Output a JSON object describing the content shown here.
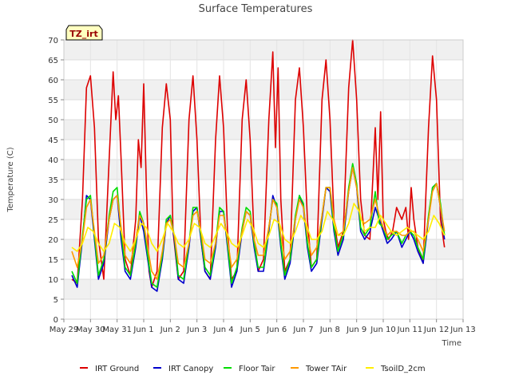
{
  "chart_data": {
    "type": "line",
    "title": "Surface Temperatures",
    "xlabel": "Time",
    "ylabel": "Temperature (C)",
    "badge": "TZ_irt",
    "ylim": [
      0,
      70
    ],
    "yticks": [
      0,
      5,
      10,
      15,
      20,
      25,
      30,
      35,
      40,
      45,
      50,
      55,
      60,
      65,
      70
    ],
    "xlim": [
      0,
      15
    ],
    "xticks": [
      {
        "x": 0,
        "label": "May 29"
      },
      {
        "x": 1,
        "label": "May 30"
      },
      {
        "x": 2,
        "label": "May 31"
      },
      {
        "x": 3,
        "label": "Jun 1"
      },
      {
        "x": 4,
        "label": "Jun 2"
      },
      {
        "x": 5,
        "label": "Jun 3"
      },
      {
        "x": 6,
        "label": "Jun 4"
      },
      {
        "x": 7,
        "label": "Jun 5"
      },
      {
        "x": 8,
        "label": "Jun 6"
      },
      {
        "x": 9,
        "label": "Jun 7"
      },
      {
        "x": 10,
        "label": "Jun 8"
      },
      {
        "x": 11,
        "label": "Jun 9"
      },
      {
        "x": 12,
        "label": "Jun 10"
      },
      {
        "x": 13,
        "label": "Jun 11"
      },
      {
        "x": 14,
        "label": "Jun 12"
      },
      {
        "x": 15,
        "label": "Jun 13"
      }
    ],
    "grid": true,
    "legend_position": "bottom",
    "series": [
      {
        "name": "IRT Ground",
        "color": "#dd0000",
        "x": [
          0.3,
          0.5,
          0.7,
          0.85,
          1.0,
          1.15,
          1.3,
          1.5,
          1.7,
          1.85,
          1.95,
          2.05,
          2.15,
          2.3,
          2.5,
          2.7,
          2.8,
          2.9,
          3.0,
          3.1,
          3.2,
          3.3,
          3.5,
          3.7,
          3.85,
          4.0,
          4.1,
          4.3,
          4.5,
          4.7,
          4.85,
          5.0,
          5.15,
          5.3,
          5.5,
          5.7,
          5.85,
          6.0,
          6.15,
          6.3,
          6.5,
          6.7,
          6.85,
          7.0,
          7.15,
          7.3,
          7.5,
          7.7,
          7.85,
          7.95,
          8.05,
          8.15,
          8.3,
          8.5,
          8.7,
          8.85,
          9.0,
          9.15,
          9.3,
          9.5,
          9.7,
          9.85,
          10.0,
          10.15,
          10.3,
          10.5,
          10.7,
          10.85,
          11.0,
          11.15,
          11.3,
          11.5,
          11.7,
          11.8,
          11.9,
          12.0,
          12.1,
          12.2,
          12.35,
          12.5,
          12.7,
          12.85,
          12.95,
          13.05,
          13.15,
          13.3,
          13.5,
          13.7,
          13.85,
          14.0,
          14.15,
          14.3
        ],
        "y": [
          10,
          9,
          30,
          58,
          61,
          48,
          20,
          10,
          40,
          62,
          50,
          56,
          40,
          15,
          11,
          25,
          45,
          38,
          59,
          33,
          12,
          8,
          12,
          48,
          59,
          50,
          22,
          10,
          12,
          50,
          61,
          45,
          20,
          12,
          10,
          45,
          61,
          48,
          22,
          10,
          12,
          50,
          60,
          45,
          20,
          12,
          15,
          50,
          67,
          43,
          63,
          30,
          12,
          15,
          55,
          63,
          48,
          25,
          13,
          15,
          55,
          65,
          50,
          25,
          18,
          22,
          58,
          70,
          55,
          30,
          21,
          20,
          48,
          30,
          52,
          25,
          22,
          20,
          22,
          28,
          25,
          28,
          20,
          33,
          25,
          18,
          14,
          48,
          66,
          55,
          25,
          18
        ]
      },
      {
        "name": "IRT Canopy",
        "color": "#0000cc",
        "x": [
          0.3,
          0.5,
          0.7,
          0.85,
          1.0,
          1.15,
          1.3,
          1.5,
          1.7,
          1.85,
          2.0,
          2.15,
          2.3,
          2.5,
          2.7,
          2.85,
          3.0,
          3.15,
          3.3,
          3.5,
          3.7,
          3.85,
          4.0,
          4.15,
          4.3,
          4.5,
          4.7,
          4.85,
          5.0,
          5.15,
          5.3,
          5.5,
          5.7,
          5.85,
          6.0,
          6.15,
          6.3,
          6.5,
          6.7,
          6.85,
          7.0,
          7.15,
          7.3,
          7.5,
          7.7,
          7.85,
          8.0,
          8.15,
          8.3,
          8.5,
          8.7,
          8.85,
          9.0,
          9.15,
          9.3,
          9.5,
          9.7,
          9.85,
          10.0,
          10.15,
          10.3,
          10.5,
          10.7,
          10.85,
          11.0,
          11.15,
          11.3,
          11.5,
          11.7,
          11.85,
          12.0,
          12.15,
          12.3,
          12.5,
          12.7,
          12.85,
          13.0,
          13.15,
          13.3,
          13.5,
          13.7,
          13.85,
          14.0,
          14.15,
          14.3
        ],
        "y": [
          11,
          8,
          20,
          31,
          30,
          20,
          10,
          14,
          25,
          30,
          31,
          20,
          12,
          10,
          18,
          26,
          22,
          15,
          8,
          7,
          15,
          24,
          26,
          20,
          10,
          9,
          18,
          27,
          28,
          20,
          12,
          10,
          18,
          27,
          27,
          18,
          8,
          12,
          22,
          27,
          26,
          18,
          12,
          12,
          22,
          31,
          28,
          18,
          10,
          14,
          25,
          31,
          28,
          18,
          12,
          14,
          25,
          33,
          32,
          22,
          16,
          20,
          32,
          38,
          33,
          22,
          20,
          22,
          28,
          25,
          22,
          19,
          20,
          22,
          18,
          20,
          22,
          20,
          17,
          14,
          25,
          33,
          34,
          28,
          20
        ]
      },
      {
        "name": "Floor Tair",
        "color": "#00dd00",
        "x": [
          0.3,
          0.5,
          0.7,
          0.85,
          1.0,
          1.15,
          1.3,
          1.5,
          1.7,
          1.85,
          2.0,
          2.15,
          2.3,
          2.5,
          2.7,
          2.85,
          3.0,
          3.15,
          3.3,
          3.5,
          3.7,
          3.85,
          4.0,
          4.15,
          4.3,
          4.5,
          4.7,
          4.85,
          5.0,
          5.15,
          5.3,
          5.5,
          5.7,
          5.85,
          6.0,
          6.15,
          6.3,
          6.5,
          6.7,
          6.85,
          7.0,
          7.15,
          7.3,
          7.5,
          7.7,
          7.85,
          8.0,
          8.15,
          8.3,
          8.5,
          8.7,
          8.85,
          9.0,
          9.15,
          9.3,
          9.5,
          9.7,
          9.85,
          10.0,
          10.15,
          10.3,
          10.5,
          10.7,
          10.85,
          11.0,
          11.15,
          11.3,
          11.5,
          11.7,
          11.85,
          12.0,
          12.15,
          12.3,
          12.5,
          12.7,
          12.85,
          13.0,
          13.15,
          13.3,
          13.5,
          13.7,
          13.85,
          14.0,
          14.15,
          14.3
        ],
        "y": [
          12,
          9,
          21,
          30,
          31,
          21,
          11,
          15,
          26,
          32,
          33,
          22,
          13,
          11,
          19,
          27,
          24,
          16,
          9,
          8,
          16,
          25,
          26,
          21,
          11,
          10,
          19,
          28,
          28,
          21,
          13,
          11,
          19,
          28,
          27,
          19,
          9,
          13,
          23,
          28,
          27,
          19,
          13,
          13,
          23,
          30,
          29,
          19,
          11,
          15,
          26,
          31,
          29,
          19,
          13,
          15,
          26,
          33,
          33,
          23,
          17,
          21,
          33,
          39,
          34,
          23,
          21,
          23,
          32,
          24,
          23,
          20,
          21,
          22,
          19,
          21,
          22,
          21,
          18,
          15,
          26,
          33,
          34,
          29,
          21
        ]
      },
      {
        "name": "Tower TAir",
        "color": "#ff9900",
        "x": [
          0.3,
          0.5,
          0.7,
          0.85,
          1.0,
          1.15,
          1.3,
          1.5,
          1.7,
          1.85,
          2.0,
          2.15,
          2.3,
          2.5,
          2.7,
          2.85,
          3.0,
          3.15,
          3.3,
          3.5,
          3.7,
          3.85,
          4.0,
          4.15,
          4.3,
          4.5,
          4.7,
          4.85,
          5.0,
          5.15,
          5.3,
          5.5,
          5.7,
          5.85,
          6.0,
          6.15,
          6.3,
          6.5,
          6.7,
          6.85,
          7.0,
          7.15,
          7.3,
          7.5,
          7.7,
          7.85,
          8.0,
          8.15,
          8.3,
          8.5,
          8.7,
          8.85,
          9.0,
          9.15,
          9.3,
          9.5,
          9.7,
          9.85,
          10.0,
          10.15,
          10.3,
          10.5,
          10.7,
          10.85,
          11.0,
          11.15,
          11.3,
          11.5,
          11.7,
          11.85,
          12.0,
          12.15,
          12.3,
          12.5,
          12.7,
          12.85,
          13.0,
          13.15,
          13.3,
          13.5,
          13.7,
          13.85,
          14.0,
          14.15,
          14.3
        ],
        "y": [
          17,
          13,
          20,
          28,
          30,
          22,
          14,
          16,
          25,
          30,
          31,
          23,
          16,
          14,
          20,
          26,
          24,
          18,
          12,
          10,
          17,
          24,
          25,
          21,
          14,
          13,
          19,
          26,
          27,
          22,
          15,
          14,
          19,
          26,
          26,
          20,
          13,
          15,
          22,
          27,
          26,
          20,
          16,
          16,
          23,
          30,
          28,
          21,
          15,
          17,
          25,
          30,
          28,
          21,
          16,
          18,
          26,
          33,
          33,
          25,
          21,
          22,
          32,
          38,
          33,
          25,
          24,
          25,
          30,
          26,
          23,
          21,
          22,
          22,
          21,
          21,
          22,
          22,
          20,
          17,
          25,
          32,
          34,
          28,
          22
        ]
      },
      {
        "name": "TsoilD_2cm",
        "color": "#ffee00",
        "x": [
          0.3,
          0.5,
          0.7,
          0.9,
          1.1,
          1.3,
          1.5,
          1.7,
          1.9,
          2.1,
          2.3,
          2.5,
          2.7,
          2.9,
          3.1,
          3.3,
          3.5,
          3.7,
          3.9,
          4.1,
          4.3,
          4.5,
          4.7,
          4.9,
          5.1,
          5.3,
          5.5,
          5.7,
          5.9,
          6.1,
          6.3,
          6.5,
          6.7,
          6.9,
          7.1,
          7.3,
          7.5,
          7.7,
          7.9,
          8.1,
          8.3,
          8.5,
          8.7,
          8.9,
          9.1,
          9.3,
          9.5,
          9.7,
          9.9,
          10.1,
          10.3,
          10.5,
          10.7,
          10.9,
          11.1,
          11.3,
          11.5,
          11.7,
          11.9,
          12.1,
          12.3,
          12.5,
          12.7,
          12.9,
          13.1,
          13.3,
          13.5,
          13.7,
          13.9,
          14.1,
          14.3
        ],
        "y": [
          18,
          17,
          19,
          23,
          22,
          19,
          17,
          19,
          24,
          23,
          19,
          17,
          20,
          24,
          23,
          19,
          17,
          20,
          24,
          22,
          19,
          18,
          20,
          24,
          23,
          19,
          18,
          21,
          24,
          22,
          19,
          18,
          21,
          25,
          23,
          19,
          18,
          21,
          25,
          24,
          20,
          19,
          22,
          26,
          24,
          20,
          20,
          22,
          27,
          25,
          21,
          21,
          24,
          29,
          27,
          22,
          23,
          23,
          26,
          24,
          22,
          21,
          22,
          23,
          22,
          21,
          20,
          22,
          26,
          24,
          21
        ]
      }
    ]
  }
}
